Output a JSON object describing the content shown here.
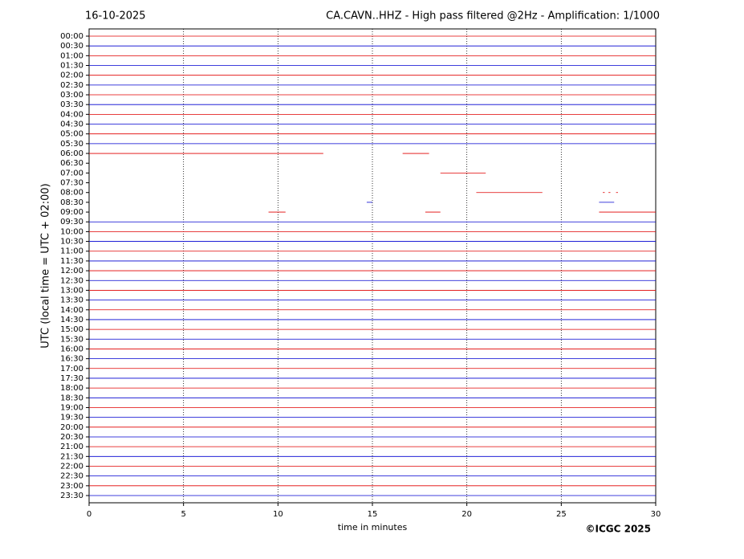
{
  "chart_data": {
    "type": "helicorder",
    "title_left": "16-10-2025",
    "title": "CA.CAVN..HHZ - High pass filtered @2Hz - Amplification: 1/1000",
    "x_label": "time in minutes",
    "y_label": "UTC (local time = UTC + 02:00)",
    "credit": "©ICGC 2025",
    "categories": [
      "00:00",
      "00:30",
      "01:00",
      "01:30",
      "02:00",
      "02:30",
      "03:00",
      "03:30",
      "04:00",
      "04:30",
      "05:00",
      "05:30",
      "06:00",
      "06:30",
      "07:00",
      "07:30",
      "08:00",
      "08:30",
      "09:00",
      "09:30",
      "10:00",
      "10:30",
      "11:00",
      "11:30",
      "12:00",
      "12:30",
      "13:00",
      "13:30",
      "14:00",
      "14:30",
      "15:00",
      "15:30",
      "16:00",
      "16:30",
      "17:00",
      "17:30",
      "18:00",
      "18:30",
      "19:00",
      "19:30",
      "20:00",
      "20:30",
      "21:00",
      "21:30",
      "22:00",
      "22:30",
      "23:00",
      "23:30"
    ],
    "colors": [
      "#e00000",
      "#0000d0"
    ],
    "segments": [
      [
        [
          0,
          30
        ]
      ],
      [
        [
          0,
          30
        ]
      ],
      [
        [
          0,
          30
        ]
      ],
      [
        [
          0,
          30
        ]
      ],
      [
        [
          0,
          30
        ]
      ],
      [
        [
          0,
          30
        ]
      ],
      [
        [
          0,
          30
        ]
      ],
      [
        [
          0,
          30
        ]
      ],
      [
        [
          0,
          30
        ]
      ],
      [
        [
          0,
          30
        ]
      ],
      [
        [
          0,
          30
        ]
      ],
      [
        [
          0,
          30
        ]
      ],
      [
        [
          0,
          12.4
        ],
        [
          16.6,
          18
        ]
      ],
      [],
      [
        [
          18.6,
          21
        ]
      ],
      [],
      [
        [
          20.5,
          24
        ],
        [
          27.2,
          27.3
        ],
        [
          27.5,
          27.6
        ],
        [
          27.9,
          28
        ]
      ],
      [
        [
          14.7,
          15
        ],
        [
          27,
          27.8
        ]
      ],
      [
        [
          9.5,
          10.4
        ],
        [
          17.8,
          18.6
        ],
        [
          27,
          30
        ]
      ],
      [
        [
          0,
          30
        ]
      ],
      [
        [
          0,
          30
        ]
      ],
      [
        [
          0,
          30
        ]
      ],
      [
        [
          0,
          30
        ]
      ],
      [
        [
          0,
          30
        ]
      ],
      [
        [
          0,
          30
        ]
      ],
      [
        [
          0,
          30
        ]
      ],
      [
        [
          0,
          30
        ]
      ],
      [
        [
          0,
          30
        ]
      ],
      [
        [
          0,
          30
        ]
      ],
      [
        [
          0,
          30
        ]
      ],
      [
        [
          0,
          30
        ]
      ],
      [
        [
          0,
          30
        ]
      ],
      [
        [
          0,
          30
        ]
      ],
      [
        [
          0,
          30
        ]
      ],
      [
        [
          0,
          30
        ]
      ],
      [
        [
          0,
          30
        ]
      ],
      [
        [
          0,
          30
        ]
      ],
      [
        [
          0,
          30
        ]
      ],
      [
        [
          0,
          30
        ]
      ],
      [
        [
          0,
          30
        ]
      ],
      [
        [
          0,
          30
        ]
      ],
      [
        [
          0,
          30
        ]
      ],
      [
        [
          0,
          30
        ]
      ],
      [
        [
          0,
          30
        ]
      ],
      [
        [
          0,
          30
        ]
      ],
      [
        [
          0,
          30
        ]
      ],
      [
        [
          0,
          30
        ]
      ],
      [
        [
          0,
          30
        ]
      ]
    ],
    "xlim": [
      0,
      30
    ],
    "xticks": [
      0,
      5,
      10,
      15,
      20,
      25,
      30
    ],
    "grid": true
  }
}
